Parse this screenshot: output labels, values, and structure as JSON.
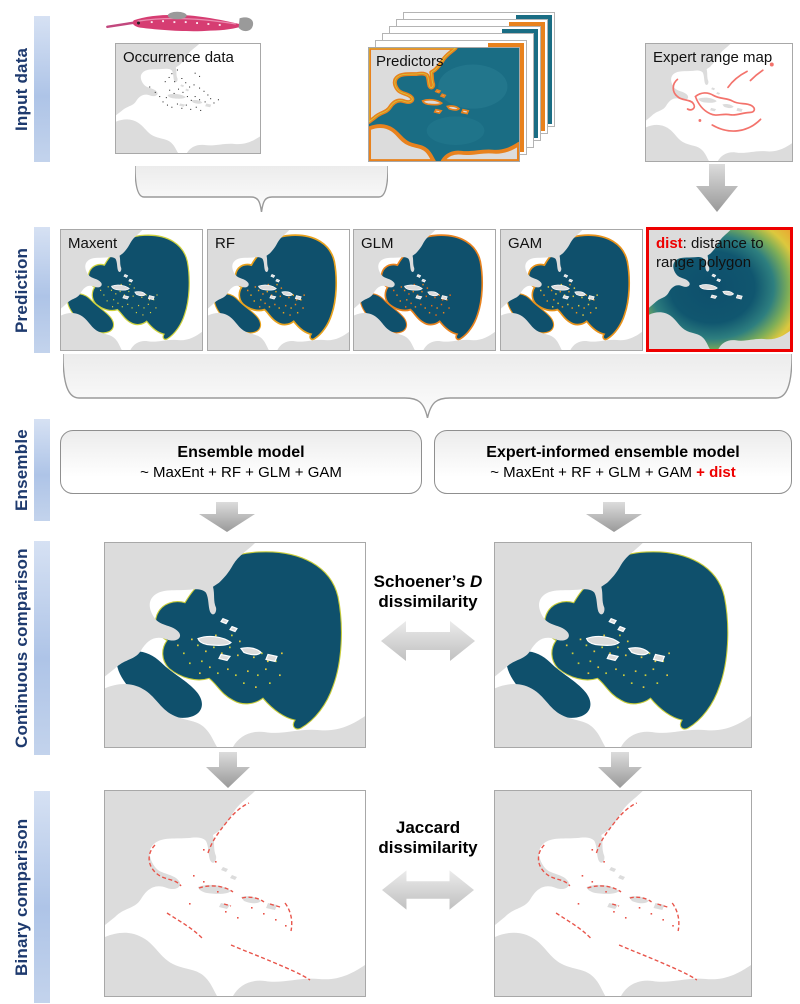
{
  "sidebar": {
    "labels": [
      "Input data",
      "Prediction",
      "Ensemble",
      "Continuous comparison",
      "Binary comparison"
    ]
  },
  "input_row": {
    "occurrence": {
      "label": "Occurrence data"
    },
    "predictors": {
      "label": "Predictors"
    },
    "expert": {
      "label": "Expert range map"
    }
  },
  "prediction_row": {
    "models": [
      {
        "label": "Maxent"
      },
      {
        "label": "RF"
      },
      {
        "label": "GLM"
      },
      {
        "label": "GAM"
      }
    ],
    "dist": {
      "term": "dist",
      "rest": ": distance to range polygon"
    }
  },
  "ensemble_row": {
    "left": {
      "title": "Ensemble model",
      "formula": "~ MaxEnt + RF + GLM + GAM"
    },
    "right": {
      "title": "Expert-informed ensemble model",
      "formula_base": "~ MaxEnt + RF + GLM + GAM",
      "formula_extra": "+ dist"
    }
  },
  "comparisons": {
    "continuous": {
      "line1_pre": "Schoener’s ",
      "line1_italic": "D",
      "line2": "dissimilarity"
    },
    "binary": {
      "line1": "Jaccard",
      "line2": "dissimilarity"
    }
  },
  "palette": {
    "sidebar_text": "#1e3a6e",
    "sidebar_bar": "#b7c9e8",
    "alert_red": "#ee0000",
    "deep_teal": "#0f506c",
    "predictor_teal": "#1a6d84",
    "coast_orange": "#e8821e",
    "speckle_yellow": "#e2c93e",
    "range_red": "#f3736c",
    "binary_red": "#e8544a",
    "land_gray": "#dcdcdc",
    "arrow_gray": "#b4b4b4"
  }
}
